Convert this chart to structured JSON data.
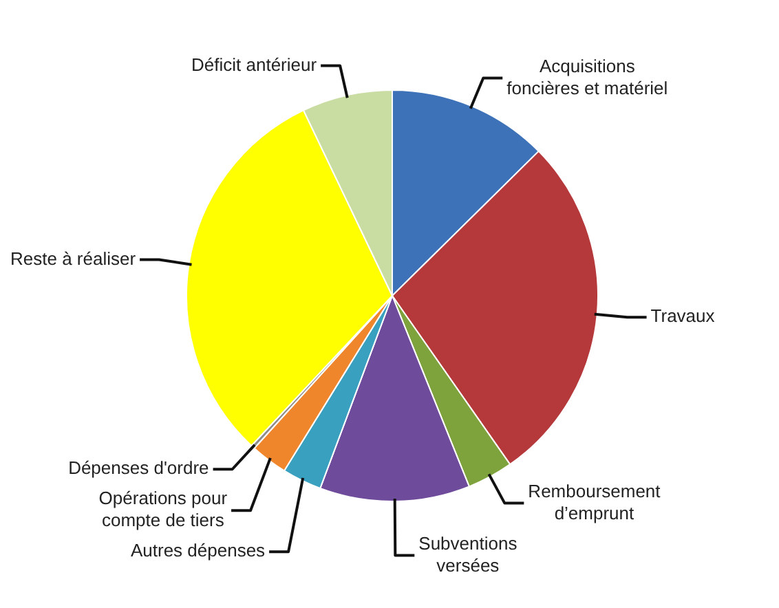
{
  "chart_data": {
    "type": "pie",
    "categories": [
      "Acquisitions foncières et matériel",
      "Travaux",
      "Remboursement d’emprunt",
      "Subventions versées",
      "Autres dépenses",
      "Opérations pour compte de tiers",
      "Dépenses d'ordre",
      "Reste à réaliser",
      "Déficit antérieur"
    ],
    "values": [
      12.6,
      27.7,
      3.6,
      11.8,
      3.1,
      2.9,
      0.3,
      30.9,
      7.1
    ],
    "colors": [
      "#3d72b8",
      "#b5383a",
      "#7fa33c",
      "#6f4b9b",
      "#3aa0bf",
      "#f0862c",
      "#8c8c8c",
      "#ffff00",
      "#c9dca2"
    ]
  }
}
